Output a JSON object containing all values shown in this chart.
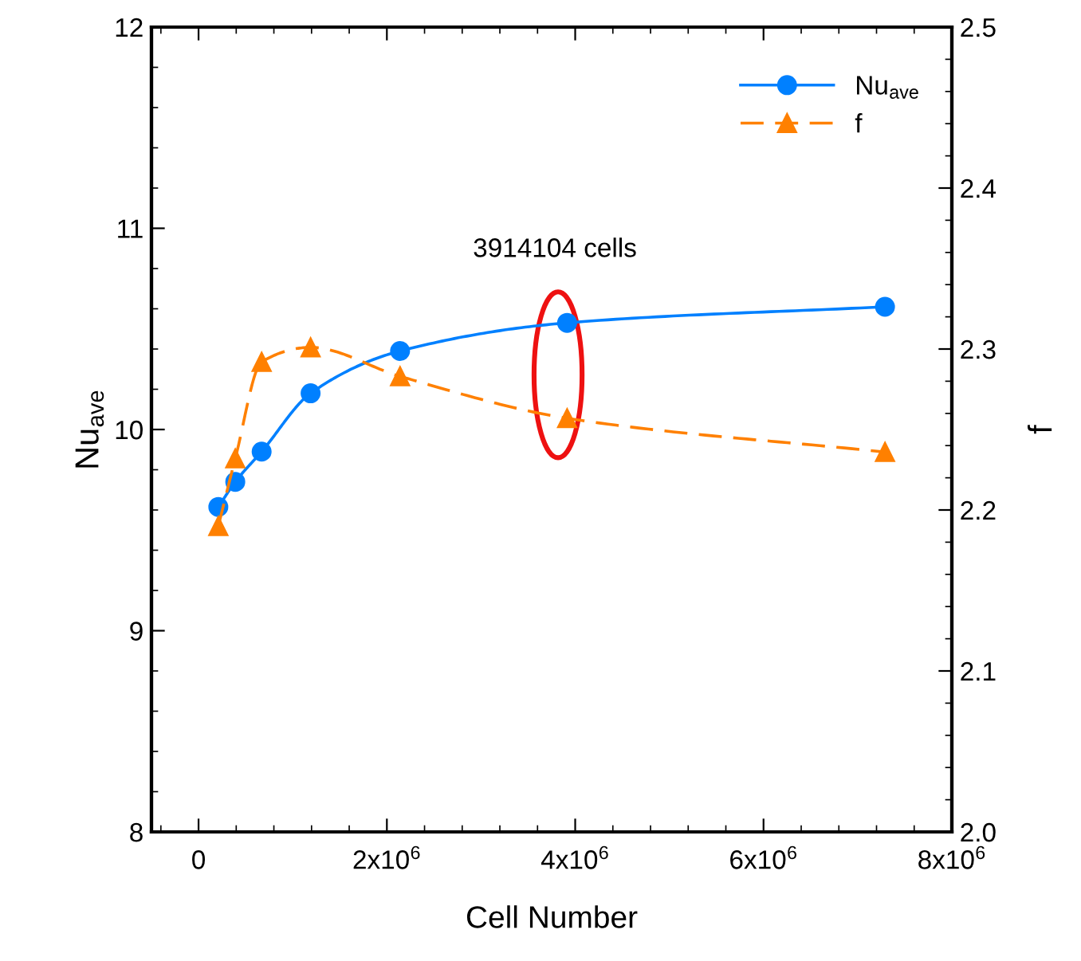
{
  "chart_data": {
    "type": "line",
    "xlabel": "Cell Number",
    "ylabel": "Nu$_{ave}$",
    "y2label": "f",
    "x": [
      210000,
      390000,
      670000,
      1190000,
      2140000,
      3914104,
      7290000
    ],
    "series": [
      {
        "name": "Nu$_{ave}$",
        "color": "#0080ff",
        "values": [
          9.615,
          9.74,
          9.89,
          10.18,
          10.39,
          10.53,
          10.61
        ],
        "marker": "circle",
        "line_style": "solid"
      },
      {
        "name": "f",
        "color": "#ff8000",
        "values": [
          2.19,
          2.232,
          2.292,
          2.301,
          2.283,
          2.257,
          2.236
        ],
        "marker": "triangle",
        "line_style": "dashed",
        "axis": "y2"
      }
    ],
    "xlim": [
      -500000,
      8000000
    ],
    "xticks": [
      {
        "value": 0,
        "label": "0"
      },
      {
        "value": 2000000,
        "label": "2x10$^{6}$"
      },
      {
        "value": 4000000,
        "label": "4x10$^{6}$"
      },
      {
        "value": 6000000,
        "label": "6x10$^{6}$"
      },
      {
        "value": 8000000,
        "label": "8x10$^{6}$"
      }
    ],
    "ylim": [
      8,
      12
    ],
    "yticks": [
      8,
      9,
      10,
      11,
      12
    ],
    "y2lim": [
      2.0,
      2.5
    ],
    "y2ticks": [
      {
        "value": 2.0,
        "label": "2.0"
      },
      {
        "value": 2.1,
        "label": "2.1"
      },
      {
        "value": 2.2,
        "label": "2.2"
      },
      {
        "value": 2.3,
        "label": "2.3"
      },
      {
        "value": 2.4,
        "label": "2.4"
      },
      {
        "value": 2.5,
        "label": "2.5"
      }
    ],
    "annotations": [
      "3914104 cells"
    ],
    "legend": "top right",
    "grid": false
  }
}
